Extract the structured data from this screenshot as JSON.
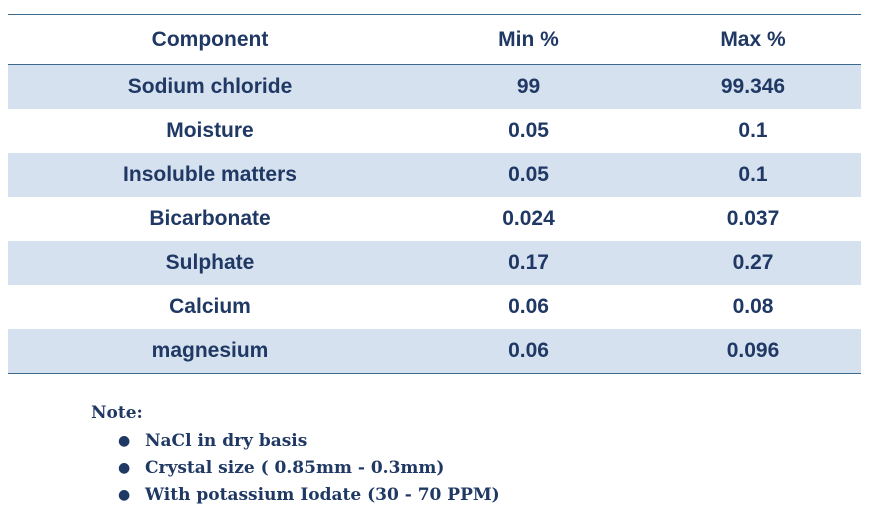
{
  "table": {
    "headers": {
      "component": "Component",
      "min": "Min %",
      "max": "Max %"
    },
    "rows": [
      {
        "component": "Sodium chloride",
        "min": "99",
        "max": "99.346"
      },
      {
        "component": "Moisture",
        "min": "0.05",
        "max": "0.1"
      },
      {
        "component": "Insoluble matters",
        "min": "0.05",
        "max": "0.1"
      },
      {
        "component": "Bicarbonate",
        "min": "0.024",
        "max": "0.037"
      },
      {
        "component": "Sulphate",
        "min": "0.17",
        "max": "0.27"
      },
      {
        "component": "Calcium",
        "min": "0.06",
        "max": "0.08"
      },
      {
        "component": "magnesium",
        "min": "0.06",
        "max": "0.096"
      }
    ]
  },
  "note": {
    "title": "Note:",
    "bullet_icon": "bullet-dot-icon",
    "items": [
      "NaCl in dry basis",
      "Crystal size ( 0.85mm - 0.3mm)",
      "With potassium Iodate (30 - 70 PPM)"
    ]
  },
  "colors": {
    "text": "#1f3864",
    "row_stripe": "#d6e1ef",
    "rule": "#3d6a8c"
  }
}
